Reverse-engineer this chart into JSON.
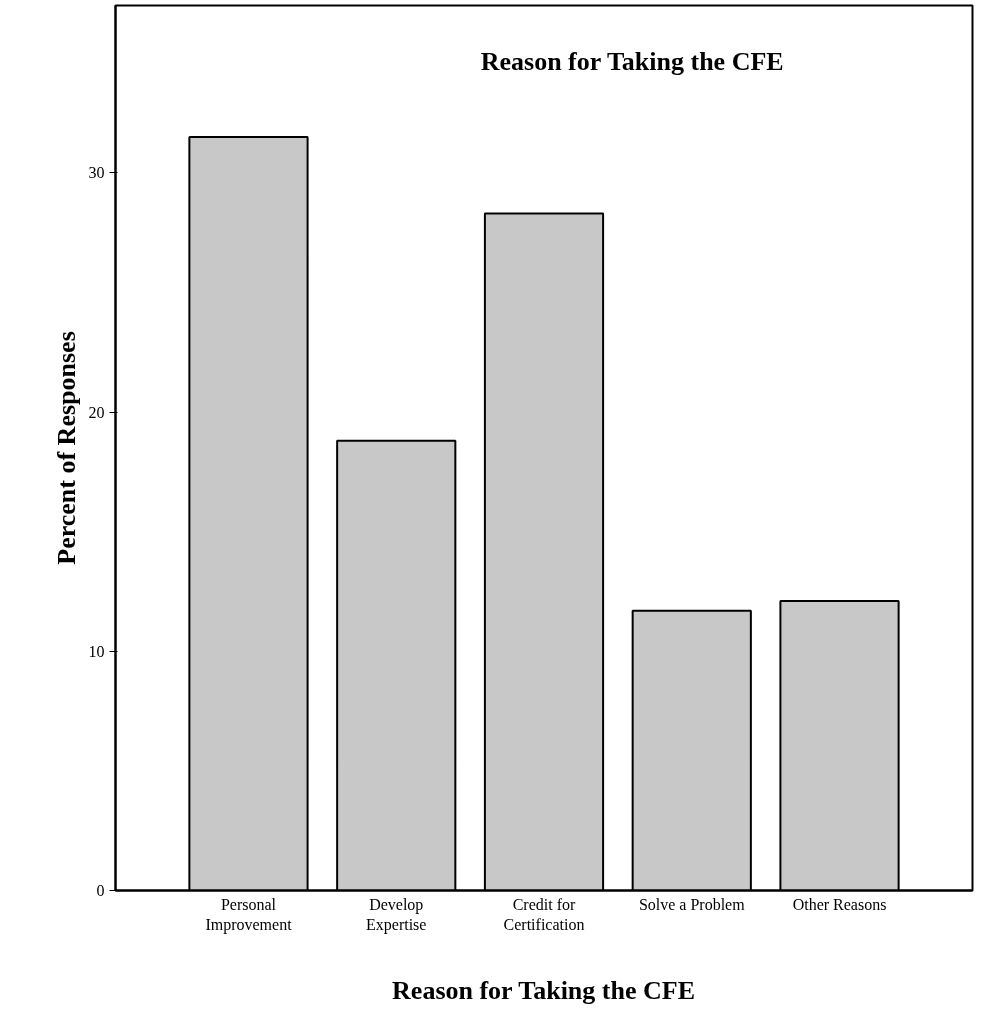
{
  "chart_data": {
    "type": "bar",
    "title": "Reason for Taking the CFE",
    "xlabel": "Reason for Taking the CFE",
    "ylabel": "Percent of Responses",
    "categories": [
      "Personal\nImprovement",
      "Develop\nExpertise",
      "Credit for\nCertification",
      "Solve a Problem",
      "Other Reasons"
    ],
    "values": [
      31.5,
      18.8,
      28.3,
      11.7,
      12.1
    ],
    "color": "#c8c8c8",
    "ylim": [
      0,
      37
    ],
    "yticks": [
      0,
      10,
      20,
      30
    ],
    "grid": false
  }
}
